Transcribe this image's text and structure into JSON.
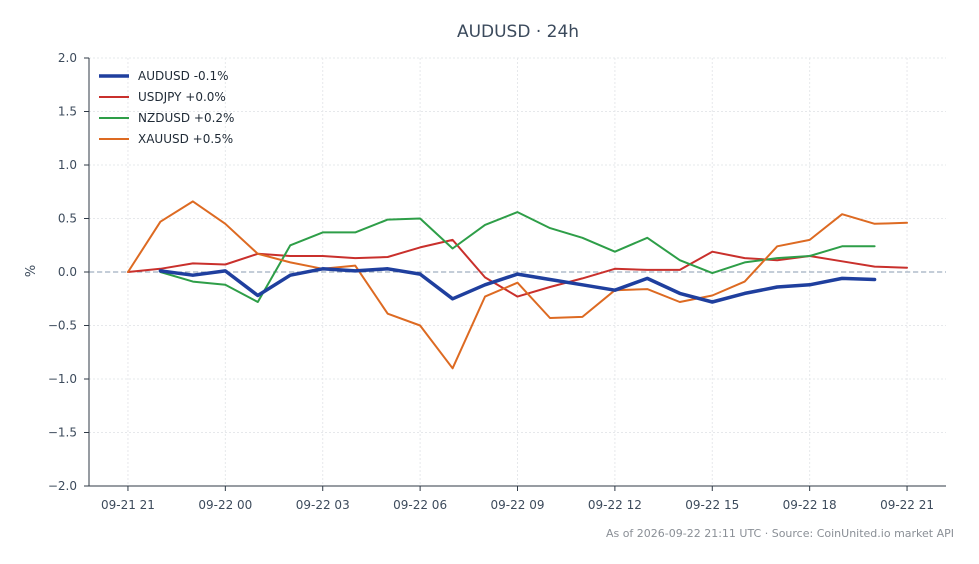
{
  "chart_data": {
    "type": "line",
    "title": "AUDUSD · 24h",
    "xlabel": "",
    "ylabel": "%",
    "ylim": [
      -2.0,
      2.0
    ],
    "yticks": [
      "2.0",
      "1.5",
      "1.0",
      "0.5",
      "0.0",
      "−0.5",
      "−1.0",
      "−1.5",
      "−2.0"
    ],
    "ytick_values": [
      2.0,
      1.5,
      1.0,
      0.5,
      0.0,
      -0.5,
      -1.0,
      -1.5,
      -2.0
    ],
    "x_ticks": [
      "09-21 21",
      "09-22 00",
      "09-22 03",
      "09-22 06",
      "09-22 09",
      "09-22 12",
      "09-22 15",
      "09-22 18",
      "09-22 21"
    ],
    "x_tick_hours": [
      0,
      3,
      6,
      9,
      12,
      15,
      18,
      21,
      24
    ],
    "x_range_hours": [
      -1.2,
      25.2
    ],
    "grid": true,
    "baseline": 0.0,
    "legend_position": "top-left",
    "series": [
      {
        "name": "AUDUSD -0.1%",
        "color": "#1f3f9e",
        "width": 3.5,
        "x": [
          1,
          2,
          3,
          4,
          5,
          6,
          7,
          8,
          9,
          10,
          11,
          12,
          13,
          14,
          15,
          16,
          17,
          18,
          19,
          20,
          21,
          22,
          23
        ],
        "values": [
          0.01,
          -0.03,
          0.01,
          -0.22,
          -0.03,
          0.03,
          0.01,
          0.03,
          -0.02,
          -0.25,
          -0.12,
          -0.02,
          -0.07,
          -0.12,
          -0.17,
          -0.06,
          -0.2,
          -0.28,
          -0.2,
          -0.14,
          -0.12,
          -0.06,
          -0.07
        ]
      },
      {
        "name": "USDJPY +0.0%",
        "color": "#c9302c",
        "width": 2,
        "x": [
          0,
          1,
          2,
          3,
          4,
          5,
          6,
          7,
          8,
          9,
          10,
          11,
          12,
          13,
          14,
          15,
          16,
          17,
          18,
          19,
          20,
          21,
          22,
          23,
          24
        ],
        "values": [
          0.0,
          0.03,
          0.08,
          0.07,
          0.17,
          0.15,
          0.15,
          0.13,
          0.14,
          0.23,
          0.3,
          -0.05,
          -0.23,
          -0.14,
          -0.06,
          0.03,
          0.02,
          0.02,
          0.19,
          0.13,
          0.11,
          0.15,
          0.1,
          0.05,
          0.04
        ]
      },
      {
        "name": "NZDUSD +0.2%",
        "color": "#2e9e48",
        "width": 2,
        "x": [
          1,
          2,
          3,
          4,
          5,
          6,
          7,
          8,
          9,
          10,
          11,
          12,
          13,
          14,
          15,
          16,
          17,
          18,
          19,
          20,
          21,
          22,
          23
        ],
        "values": [
          0.0,
          -0.09,
          -0.12,
          -0.28,
          0.25,
          0.37,
          0.37,
          0.49,
          0.5,
          0.22,
          0.44,
          0.56,
          0.41,
          0.32,
          0.19,
          0.32,
          0.11,
          -0.01,
          0.09,
          0.13,
          0.15,
          0.24,
          0.24
        ]
      },
      {
        "name": "XAUUSD +0.5%",
        "color": "#dd6a22",
        "width": 2,
        "x": [
          0,
          1,
          2,
          3,
          4,
          5,
          6,
          7,
          8,
          9,
          10,
          11,
          12,
          13,
          14,
          15,
          16,
          17,
          18,
          19,
          20,
          21,
          22,
          23,
          24
        ],
        "values": [
          0.0,
          0.47,
          0.66,
          0.45,
          0.17,
          0.09,
          0.03,
          0.06,
          -0.39,
          -0.5,
          -0.9,
          -0.23,
          -0.1,
          -0.43,
          -0.42,
          -0.17,
          -0.16,
          -0.28,
          -0.22,
          -0.09,
          0.24,
          0.3,
          0.54,
          0.45,
          0.46
        ]
      }
    ]
  },
  "footer": "As of 2026-09-22 21:11 UTC · Source: CoinUnited.io market API"
}
